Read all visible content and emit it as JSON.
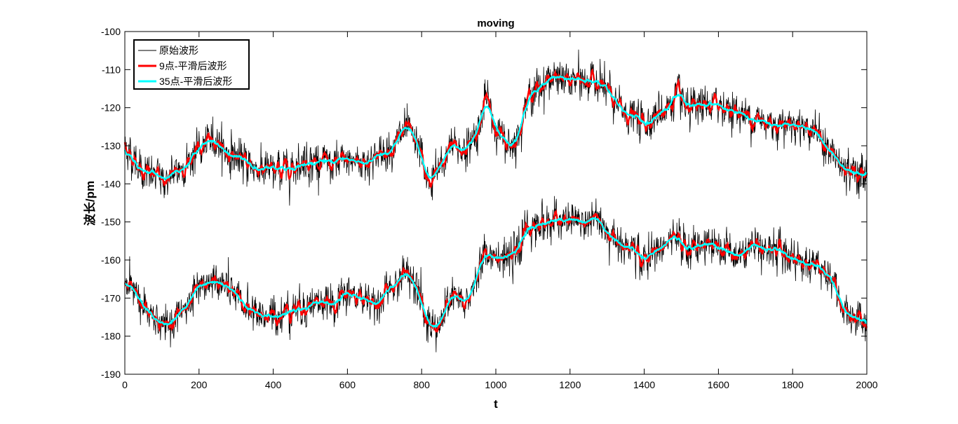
{
  "chart_data": {
    "type": "line",
    "title": "moving",
    "xlabel": "t",
    "ylabel": "波长/pm",
    "xlim": [
      0,
      2000
    ],
    "ylim": [
      -190,
      -100
    ],
    "xticks": [
      0,
      200,
      400,
      600,
      800,
      1000,
      1200,
      1400,
      1600,
      1800,
      2000
    ],
    "yticks": [
      -100,
      -110,
      -120,
      -130,
      -140,
      -150,
      -160,
      -170,
      -180,
      -190
    ],
    "grid": false,
    "legend_position": "top-left",
    "series": [
      {
        "name": "原始波形",
        "color": "#000000",
        "style": "raw"
      },
      {
        "name": "9点-平滑后波形",
        "color": "#ff0000",
        "style": "smooth9"
      },
      {
        "name": "35点-平滑后波形",
        "color": "#00ffff",
        "style": "smooth35"
      }
    ],
    "upper_trace": {
      "t": [
        0,
        20,
        50,
        80,
        110,
        150,
        200,
        240,
        280,
        320,
        360,
        400,
        440,
        480,
        520,
        560,
        600,
        640,
        680,
        720,
        760,
        790,
        820,
        850,
        880,
        920,
        950,
        975,
        1000,
        1030,
        1060,
        1080,
        1100,
        1150,
        1200,
        1250,
        1280,
        1300,
        1330,
        1360,
        1400,
        1430,
        1460,
        1490,
        1520,
        1560,
        1600,
        1650,
        1700,
        1750,
        1800,
        1850,
        1880,
        1900,
        1940,
        1970,
        2000
      ],
      "values": [
        -130,
        -133,
        -137,
        -138,
        -139,
        -136,
        -131,
        -128,
        -132,
        -134,
        -136,
        -137,
        -136,
        -134,
        -134,
        -135,
        -134,
        -134,
        -133,
        -130,
        -126,
        -130,
        -140,
        -136,
        -130,
        -131,
        -126,
        -118,
        -125,
        -130,
        -128,
        -118,
        -116,
        -112,
        -113,
        -113,
        -113,
        -116,
        -120,
        -122,
        -124,
        -122,
        -120,
        -117,
        -121,
        -120,
        -119,
        -121,
        -123,
        -124,
        -124,
        -125,
        -128,
        -132,
        -136,
        -137,
        -138
      ]
    },
    "lower_trace": {
      "t": [
        0,
        20,
        50,
        80,
        110,
        150,
        200,
        240,
        280,
        320,
        360,
        400,
        440,
        480,
        520,
        560,
        600,
        640,
        680,
        720,
        760,
        790,
        820,
        850,
        880,
        920,
        950,
        975,
        1000,
        1030,
        1060,
        1080,
        1100,
        1150,
        1200,
        1250,
        1280,
        1300,
        1330,
        1360,
        1400,
        1430,
        1460,
        1490,
        1520,
        1560,
        1600,
        1650,
        1700,
        1750,
        1800,
        1850,
        1880,
        1900,
        1940,
        1970,
        2000
      ],
      "values": [
        -165,
        -167,
        -172,
        -176,
        -178,
        -174,
        -168,
        -165,
        -168,
        -172,
        -174,
        -175,
        -173,
        -172,
        -171,
        -172,
        -169,
        -170,
        -171,
        -168,
        -163,
        -166,
        -178,
        -177,
        -170,
        -172,
        -164,
        -158,
        -158,
        -160,
        -158,
        -152,
        -151,
        -150,
        -150,
        -150,
        -150,
        -152,
        -155,
        -157,
        -160,
        -158,
        -156,
        -155,
        -157,
        -156,
        -157,
        -158,
        -156,
        -157,
        -159,
        -161,
        -161,
        -165,
        -173,
        -175,
        -177
      ]
    }
  }
}
